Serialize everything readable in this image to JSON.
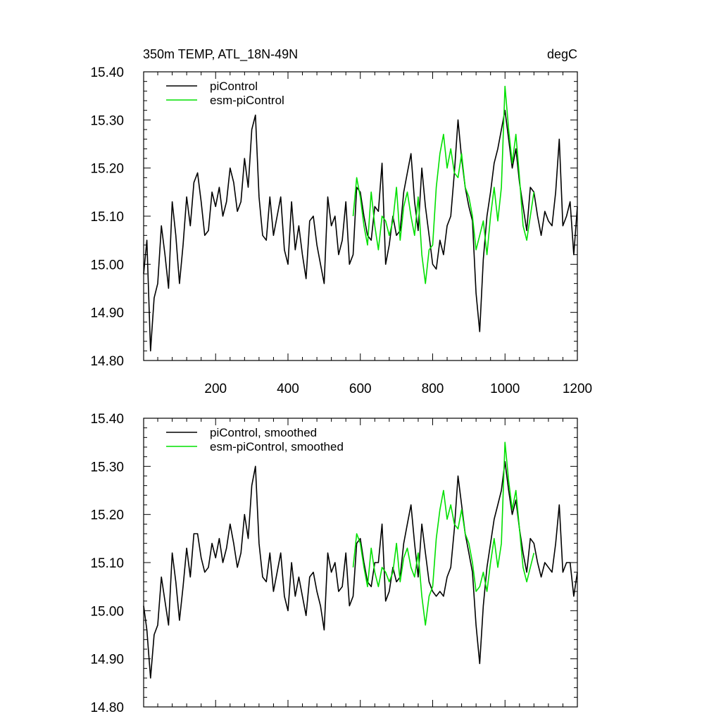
{
  "chart_data": [
    {
      "type": "line",
      "title": "350m TEMP, ATL_18N-49N",
      "units": "degC",
      "xlim": [
        1,
        1200
      ],
      "ylim": [
        14.8,
        15.4
      ],
      "x_ticks": [
        200,
        400,
        600,
        800,
        1000,
        1200
      ],
      "x_tick_labels": [
        "200",
        "400",
        "600",
        "800",
        "1000",
        "1200"
      ],
      "y_ticks": [
        14.8,
        14.9,
        15.0,
        15.1,
        15.2,
        15.3,
        15.4
      ],
      "y_tick_labels": [
        "14.80",
        "14.90",
        "15.00",
        "15.10",
        "15.20",
        "15.30",
        "15.40"
      ],
      "grid": false,
      "legend": "top-left",
      "series": [
        {
          "name": "piControl",
          "color": "#000000",
          "x": [
            1,
            10,
            20,
            30,
            40,
            50,
            60,
            70,
            80,
            90,
            100,
            110,
            120,
            130,
            140,
            150,
            160,
            170,
            180,
            190,
            200,
            210,
            220,
            230,
            240,
            250,
            260,
            270,
            280,
            290,
            300,
            310,
            320,
            330,
            340,
            350,
            360,
            370,
            380,
            390,
            400,
            410,
            420,
            430,
            440,
            450,
            460,
            470,
            480,
            490,
            500,
            510,
            520,
            530,
            540,
            550,
            560,
            570,
            580,
            590,
            600,
            610,
            620,
            630,
            640,
            650,
            660,
            670,
            680,
            690,
            700,
            710,
            720,
            730,
            740,
            750,
            760,
            770,
            780,
            790,
            800,
            810,
            820,
            830,
            840,
            850,
            860,
            870,
            880,
            890,
            900,
            910,
            920,
            930,
            940,
            950,
            960,
            970,
            980,
            990,
            1000,
            1010,
            1020,
            1030,
            1040,
            1050,
            1060,
            1070,
            1080,
            1090,
            1100,
            1110,
            1120,
            1130,
            1140,
            1150,
            1160,
            1170,
            1180,
            1190,
            1200
          ],
          "y": [
            14.98,
            15.05,
            14.82,
            14.93,
            14.96,
            15.08,
            15.02,
            14.95,
            15.13,
            15.06,
            14.96,
            15.04,
            15.14,
            15.08,
            15.17,
            15.19,
            15.13,
            15.06,
            15.07,
            15.15,
            15.12,
            15.16,
            15.1,
            15.13,
            15.2,
            15.17,
            15.11,
            15.13,
            15.22,
            15.16,
            15.28,
            15.31,
            15.14,
            15.06,
            15.05,
            15.14,
            15.06,
            15.1,
            15.14,
            15.03,
            15.0,
            15.13,
            15.03,
            15.08,
            15.02,
            14.97,
            15.09,
            15.1,
            15.04,
            15.0,
            14.96,
            15.14,
            15.08,
            15.1,
            15.02,
            15.05,
            15.13,
            15.0,
            15.02,
            15.16,
            15.15,
            15.1,
            15.06,
            15.05,
            15.12,
            15.11,
            15.21,
            15.0,
            15.04,
            15.1,
            15.06,
            15.07,
            15.15,
            15.19,
            15.23,
            15.13,
            15.07,
            15.2,
            15.12,
            15.06,
            15.0,
            14.99,
            15.05,
            15.02,
            15.08,
            15.1,
            15.19,
            15.3,
            15.22,
            15.16,
            15.12,
            15.09,
            14.94,
            14.86,
            15.01,
            15.1,
            15.15,
            15.21,
            15.24,
            15.28,
            15.32,
            15.26,
            15.2,
            15.24,
            15.17,
            15.12,
            15.07,
            15.16,
            15.15,
            15.1,
            15.06,
            15.11,
            15.09,
            15.08,
            15.15,
            15.26,
            15.08,
            15.1,
            15.13,
            15.02,
            15.12
          ]
        },
        {
          "name": "esm-piControl",
          "color": "#00e000",
          "x": [
            580,
            590,
            600,
            610,
            620,
            630,
            640,
            650,
            660,
            670,
            680,
            690,
            700,
            710,
            720,
            730,
            740,
            750,
            760,
            770,
            780,
            790,
            800,
            810,
            820,
            830,
            840,
            850,
            860,
            870,
            880,
            890,
            900,
            910,
            920,
            930,
            940,
            950,
            960,
            970,
            980,
            990,
            1000,
            1010,
            1020,
            1030,
            1040,
            1050,
            1060,
            1070,
            1080
          ],
          "y": [
            15.1,
            15.18,
            15.14,
            15.08,
            15.04,
            15.15,
            15.08,
            15.03,
            15.1,
            15.09,
            15.06,
            15.09,
            15.16,
            15.05,
            15.12,
            15.15,
            15.1,
            15.06,
            15.14,
            15.02,
            14.96,
            15.03,
            15.04,
            15.16,
            15.23,
            15.27,
            15.2,
            15.24,
            15.19,
            15.18,
            15.23,
            15.16,
            15.14,
            15.1,
            15.03,
            15.06,
            15.09,
            15.02,
            15.1,
            15.16,
            15.09,
            15.16,
            15.37,
            15.28,
            15.21,
            15.27,
            15.18,
            15.08,
            15.05,
            15.1,
            15.15
          ]
        }
      ]
    },
    {
      "type": "line",
      "title": "",
      "xlim": [
        1,
        1200
      ],
      "ylim": [
        14.8,
        15.4
      ],
      "y_ticks": [
        14.8,
        14.9,
        15.0,
        15.1,
        15.2,
        15.3,
        15.4
      ],
      "y_tick_labels": [
        "14.80",
        "14.90",
        "15.00",
        "15.10",
        "15.20",
        "15.30",
        "15.40"
      ],
      "grid": false,
      "legend": "top-left",
      "series": [
        {
          "name": "piControl, smoothed",
          "color": "#000000",
          "x": [
            1,
            10,
            20,
            30,
            40,
            50,
            60,
            70,
            80,
            90,
            100,
            110,
            120,
            130,
            140,
            150,
            160,
            170,
            180,
            190,
            200,
            210,
            220,
            230,
            240,
            250,
            260,
            270,
            280,
            290,
            300,
            310,
            320,
            330,
            340,
            350,
            360,
            370,
            380,
            390,
            400,
            410,
            420,
            430,
            440,
            450,
            460,
            470,
            480,
            490,
            500,
            510,
            520,
            530,
            540,
            550,
            560,
            570,
            580,
            590,
            600,
            610,
            620,
            630,
            640,
            650,
            660,
            670,
            680,
            690,
            700,
            710,
            720,
            730,
            740,
            750,
            760,
            770,
            780,
            790,
            800,
            810,
            820,
            830,
            840,
            850,
            860,
            870,
            880,
            890,
            900,
            910,
            920,
            930,
            940,
            950,
            960,
            970,
            980,
            990,
            1000,
            1010,
            1020,
            1030,
            1040,
            1050,
            1060,
            1070,
            1080,
            1090,
            1100,
            1110,
            1120,
            1130,
            1140,
            1150,
            1160,
            1170,
            1180,
            1190,
            1200
          ],
          "y": [
            15.01,
            14.96,
            14.86,
            14.95,
            14.97,
            15.07,
            15.02,
            14.97,
            15.12,
            15.06,
            14.98,
            15.05,
            15.13,
            15.07,
            15.16,
            15.16,
            15.11,
            15.08,
            15.09,
            15.14,
            15.11,
            15.15,
            15.1,
            15.13,
            15.18,
            15.14,
            15.09,
            15.12,
            15.2,
            15.15,
            15.26,
            15.3,
            15.14,
            15.07,
            15.06,
            15.12,
            15.04,
            15.08,
            15.12,
            15.03,
            15.0,
            15.1,
            15.03,
            15.07,
            15.03,
            14.99,
            15.07,
            15.08,
            15.04,
            15.01,
            14.96,
            15.12,
            15.08,
            15.1,
            15.04,
            15.05,
            15.12,
            15.01,
            15.03,
            15.14,
            15.15,
            15.1,
            15.06,
            15.05,
            15.1,
            15.1,
            15.18,
            15.02,
            15.04,
            15.09,
            15.06,
            15.07,
            15.14,
            15.18,
            15.22,
            15.14,
            15.07,
            15.18,
            15.12,
            15.06,
            15.04,
            15.03,
            15.04,
            15.03,
            15.07,
            15.09,
            15.17,
            15.28,
            15.22,
            15.16,
            15.12,
            15.08,
            14.97,
            14.89,
            15.01,
            15.09,
            15.14,
            15.19,
            15.22,
            15.25,
            15.31,
            15.25,
            15.2,
            15.23,
            15.17,
            15.12,
            15.08,
            15.15,
            15.14,
            15.1,
            15.07,
            15.1,
            15.09,
            15.08,
            15.14,
            15.22,
            15.08,
            15.1,
            15.1,
            15.03,
            15.08
          ]
        },
        {
          "name": "esm-piControl, smoothed",
          "color": "#00e000",
          "x": [
            580,
            590,
            600,
            610,
            620,
            630,
            640,
            650,
            660,
            670,
            680,
            690,
            700,
            710,
            720,
            730,
            740,
            750,
            760,
            770,
            780,
            790,
            800,
            810,
            820,
            830,
            840,
            850,
            860,
            870,
            880,
            890,
            900,
            910,
            920,
            930,
            940,
            950,
            960,
            970,
            980,
            990,
            1000,
            1010,
            1020,
            1030,
            1040,
            1050,
            1060,
            1070,
            1080
          ],
          "y": [
            15.09,
            15.16,
            15.14,
            15.09,
            15.05,
            15.13,
            15.08,
            15.05,
            15.09,
            15.08,
            15.06,
            15.08,
            15.14,
            15.06,
            15.11,
            15.13,
            15.09,
            15.07,
            15.12,
            15.03,
            14.97,
            15.03,
            15.05,
            15.15,
            15.21,
            15.25,
            15.19,
            15.22,
            15.18,
            15.17,
            15.21,
            15.16,
            15.14,
            15.1,
            15.04,
            15.05,
            15.08,
            15.04,
            15.1,
            15.15,
            15.09,
            15.14,
            15.35,
            15.27,
            15.21,
            15.25,
            15.17,
            15.09,
            15.06,
            15.09,
            15.12
          ]
        }
      ]
    }
  ]
}
